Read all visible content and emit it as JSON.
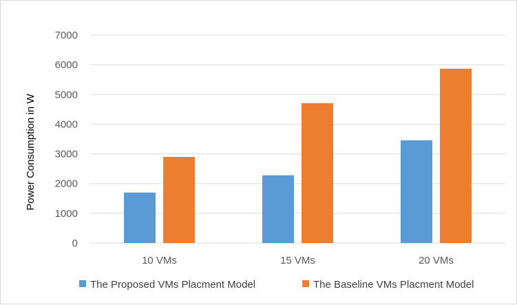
{
  "chart_data": {
    "type": "bar",
    "title": "",
    "xlabel": "",
    "ylabel": "Power Consumption in W",
    "categories": [
      "10 VMs",
      "15 VMs",
      "20 VMs"
    ],
    "series": [
      {
        "name": "The Proposed VMs Placment Model",
        "color": "#5b9bd5",
        "values": [
          1700,
          2280,
          3460
        ]
      },
      {
        "name": "The Baseline VMs Placment Model",
        "color": "#ed7d31",
        "values": [
          2900,
          4710,
          5870
        ]
      }
    ],
    "ylim": [
      0,
      7000
    ],
    "yticks": [
      0,
      1000,
      2000,
      3000,
      4000,
      5000,
      6000,
      7000
    ],
    "grid": true,
    "legend_position": "bottom"
  }
}
